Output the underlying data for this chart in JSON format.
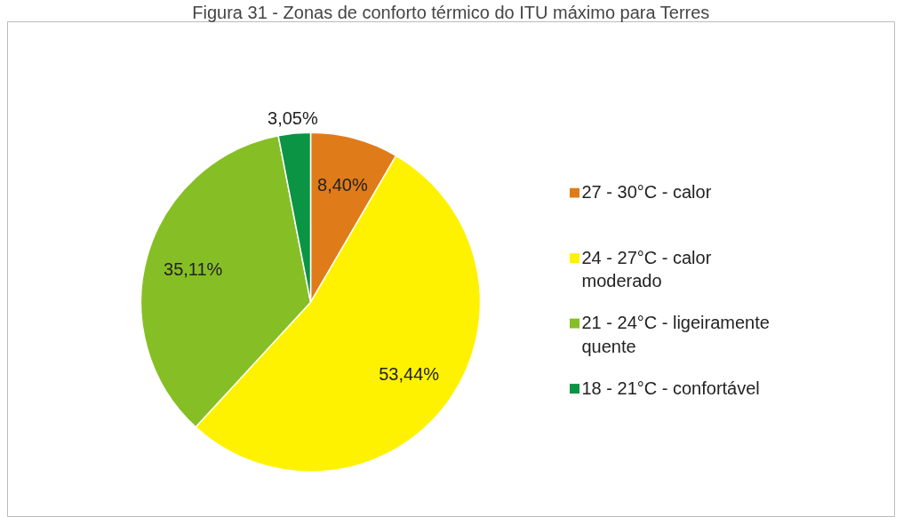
{
  "chart_data": {
    "type": "pie",
    "title": "Figura 31 - Zonas de conforto térmico do ITU máximo para Terres",
    "categories": [
      "27 - 30°C - calor",
      "24 - 27°C - calor moderado",
      "21 - 24°C - ligeiramente quente",
      "18 - 21°C - confortável"
    ],
    "values": [
      8.4,
      53.44,
      35.11,
      3.05
    ],
    "value_labels": [
      "8,40%",
      "53,44%",
      "35,11%",
      "3,05%"
    ],
    "colors": [
      "#e07b1a",
      "#fff200",
      "#86bf25",
      "#0a9444"
    ],
    "legend": "right"
  }
}
